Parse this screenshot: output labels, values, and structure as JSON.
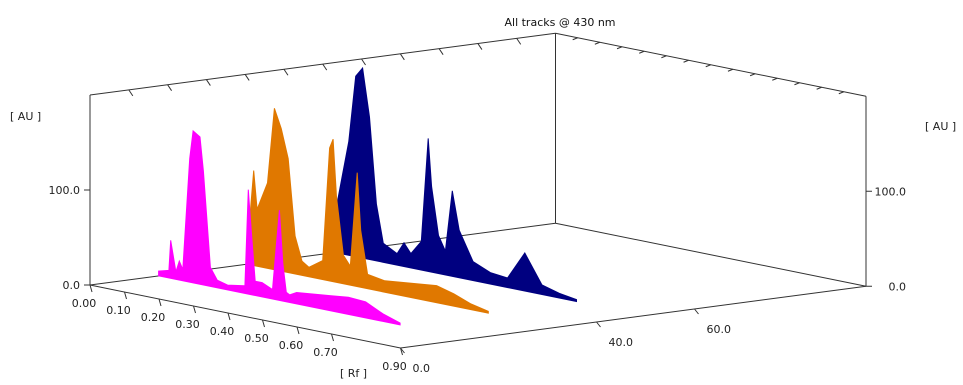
{
  "chart_data": {
    "type": "area",
    "title": "All tracks @ 430 nm",
    "y_unit_left": "[ AU ]",
    "y_unit_right": "[ AU ]",
    "x_unit": "[ Rf ]",
    "y_ticks": [
      "0.0",
      "100.0"
    ],
    "x_ticks": [
      "0.00",
      "0.10",
      "0.20",
      "0.30",
      "0.40",
      "0.50",
      "0.60",
      "0.70",
      "0.90"
    ],
    "depth_ticks": [
      "0.0",
      "40.0",
      "60.0"
    ],
    "colors": [
      "#ff00ff",
      "#e07800",
      "#000080"
    ],
    "series": [
      {
        "name": "",
        "color": "#ff00ff",
        "rf": [
          0.0,
          0.03,
          0.035,
          0.05,
          0.06,
          0.07,
          0.09,
          0.1,
          0.12,
          0.13,
          0.15,
          0.17,
          0.2,
          0.25,
          0.26,
          0.27,
          0.28,
          0.3,
          0.33,
          0.35,
          0.36,
          0.37,
          0.38,
          0.4,
          0.45,
          0.5,
          0.55,
          0.6,
          0.65,
          0.7
        ],
        "au": [
          5,
          8,
          40,
          8,
          20,
          12,
          130,
          160,
          155,
          120,
          20,
          8,
          5,
          8,
          110,
          60,
          15,
          15,
          10,
          95,
          40,
          10,
          8,
          12,
          14,
          16,
          18,
          17,
          8,
          2
        ]
      },
      {
        "name": "",
        "color": "#e07800",
        "rf": [
          0.0,
          0.02,
          0.03,
          0.06,
          0.08,
          0.1,
          0.12,
          0.14,
          0.16,
          0.18,
          0.22,
          0.24,
          0.25,
          0.26,
          0.28,
          0.3,
          0.32,
          0.33,
          0.35,
          0.4,
          0.45,
          0.5,
          0.55,
          0.6,
          0.65,
          0.7
        ],
        "au": [
          10,
          100,
          60,
          90,
          170,
          150,
          120,
          40,
          15,
          10,
          20,
          140,
          150,
          90,
          30,
          20,
          120,
          60,
          15,
          12,
          14,
          16,
          18,
          13,
          6,
          2
        ]
      },
      {
        "name": "",
        "color": "#000080",
        "rf": [
          0.0,
          0.02,
          0.04,
          0.06,
          0.08,
          0.1,
          0.12,
          0.14,
          0.18,
          0.2,
          0.22,
          0.25,
          0.27,
          0.28,
          0.3,
          0.32,
          0.34,
          0.36,
          0.4,
          0.45,
          0.5,
          0.55,
          0.6,
          0.65,
          0.7
        ],
        "au": [
          40,
          80,
          120,
          190,
          200,
          150,
          60,
          20,
          12,
          25,
          15,
          30,
          140,
          90,
          40,
          25,
          90,
          50,
          20,
          12,
          10,
          40,
          10,
          5,
          2
        ]
      }
    ]
  }
}
